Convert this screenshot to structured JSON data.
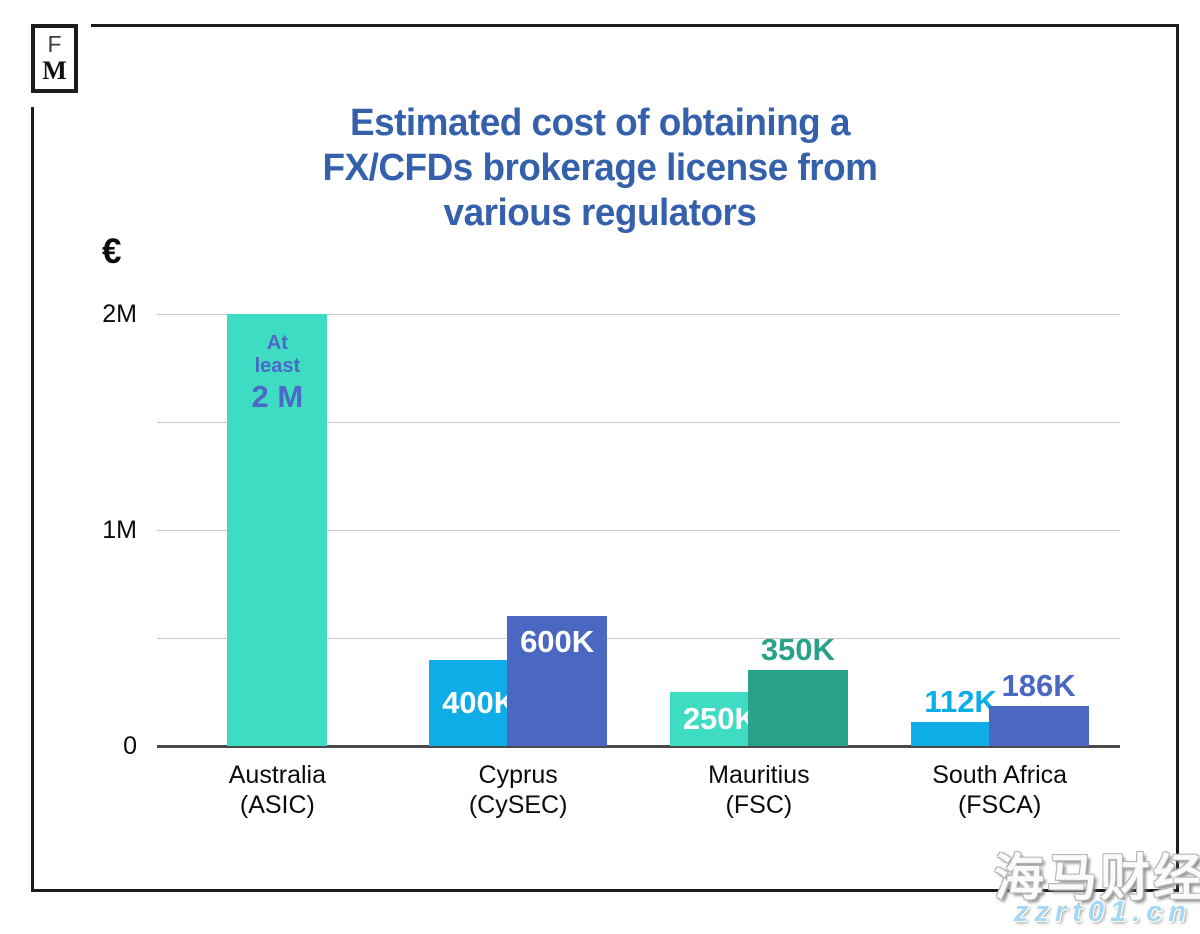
{
  "logo": {
    "letter_f": "F",
    "letter_m": "M"
  },
  "title": {
    "lines": [
      "Estimated cost of obtaining a",
      "FX/CFDs brokerage license from",
      "various regulators"
    ],
    "color": "#3560AC"
  },
  "axis": {
    "currency_symbol": "€"
  },
  "chart_data": {
    "type": "bar",
    "title": "Estimated cost of obtaining a FX/CFDs brokerage license from various regulators",
    "currency": "EUR",
    "ylabel": "€",
    "ylim": [
      0,
      2000000
    ],
    "grid": "horizontal",
    "legend": "none",
    "ticks": [
      {
        "value": 2000000,
        "label": "2M"
      },
      {
        "value": 1500000,
        "label": ""
      },
      {
        "value": 1000000,
        "label": "1M"
      },
      {
        "value": 500000,
        "label": ""
      },
      {
        "value": 0,
        "label": "0"
      }
    ],
    "groups": [
      {
        "country": "Australia",
        "regulator": "(ASIC)",
        "bars": [
          {
            "value": 2000000,
            "label": "2 M",
            "note_lines": [
              "At",
              "least"
            ],
            "color": "#3DDCC3",
            "label_color": "#4D68C8",
            "label_style": "inside-top"
          }
        ]
      },
      {
        "country": "Cyprus",
        "regulator": "(CySEC)",
        "bars": [
          {
            "value": 400000,
            "label": "400K",
            "color": "#0FADE8",
            "label_color": "#FFFFFF",
            "label_style": "inside-middle"
          },
          {
            "value": 600000,
            "label": "600K",
            "color": "#4A68C2",
            "label_color": "#FFFFFF",
            "label_style": "inside-top"
          }
        ]
      },
      {
        "country": "Mauritius",
        "regulator": "(FSC)",
        "bars": [
          {
            "value": 250000,
            "label": "250K",
            "color": "#3DDCC3",
            "label_color": "#FFFFFF",
            "label_style": "inside-middle"
          },
          {
            "value": 350000,
            "label": "350K",
            "color": "#2AA189",
            "label_color": "#2AA189",
            "label_style": "above"
          }
        ]
      },
      {
        "country": "South Africa",
        "regulator": "(FSCA)",
        "bars": [
          {
            "value": 112000,
            "label": "112K",
            "color": "#0FADE8",
            "label_color": "#0FADE8",
            "label_style": "above"
          },
          {
            "value": 186000,
            "label": "186K",
            "color": "#4A68C2",
            "label_color": "#4A68C2",
            "label_style": "above"
          }
        ]
      }
    ]
  },
  "watermark": {
    "cn": "海马财经",
    "url": "zzrt01.cn"
  }
}
